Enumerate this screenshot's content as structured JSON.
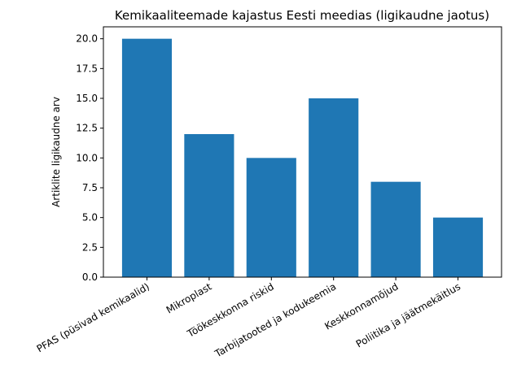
{
  "chart_data": {
    "type": "bar",
    "title": "Kemikaaliteemade kajastus Eesti meedias (ligikaudne jaotus)",
    "xlabel": "",
    "ylabel": "Artiklite ligikaudne arv",
    "categories": [
      "PFAS (püsivad kemikaalid)",
      "Mikroplast",
      "Töökeskkonna riskid",
      "Tarbijatooted ja kodukeemia",
      "Keskkonnamõjud",
      "Poliitika ja jäätmekäitlus"
    ],
    "values": [
      20,
      12,
      10,
      15,
      8,
      5
    ],
    "ylim": [
      0,
      21
    ],
    "yticks": [
      0.0,
      2.5,
      5.0,
      7.5,
      10.0,
      12.5,
      15.0,
      17.5,
      20.0
    ],
    "ytick_labels": [
      "0.0",
      "2.5",
      "5.0",
      "7.5",
      "10.0",
      "12.5",
      "15.0",
      "17.5",
      "20.0"
    ],
    "grid": false,
    "bar_color": "#1f77b4"
  }
}
